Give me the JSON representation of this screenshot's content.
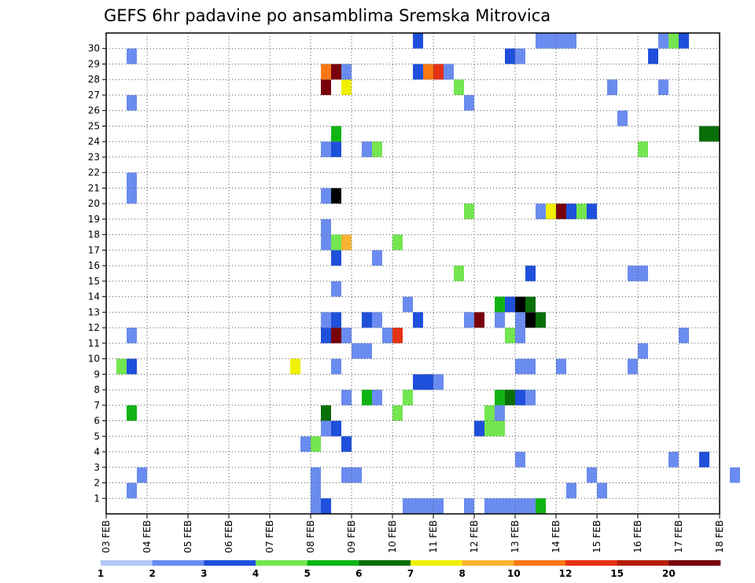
{
  "chart_data": {
    "type": "heatmap",
    "title": "GEFS 6hr padavine po ansamblima Sremska Mitrovica",
    "x_tick_labels": [
      "03 FEB",
      "04 FEB",
      "05 FEB",
      "06 FEB",
      "07 FEB",
      "08 FEB",
      "09 FEB",
      "10 FEB",
      "11 FEB",
      "12 FEB",
      "13 FEB",
      "14 FEB",
      "15 FEB",
      "16 FEB",
      "17 FEB",
      "18 FEB"
    ],
    "y_tick_labels": [
      "1",
      "2",
      "3",
      "4",
      "5",
      "6",
      "7",
      "8",
      "9",
      "10",
      "11",
      "12",
      "13",
      "14",
      "15",
      "16",
      "17",
      "18",
      "19",
      "20",
      "21",
      "22",
      "23",
      "24",
      "25",
      "26",
      "27",
      "28",
      "29",
      "30"
    ],
    "ylim": [
      0,
      30
    ],
    "grid": true,
    "colorbar": {
      "labels": [
        "1",
        "2",
        "3",
        "4",
        "5",
        "6",
        "7",
        "8",
        "10",
        "12",
        "15",
        "20"
      ],
      "colors": [
        "#b4c8f5",
        "#6a8cf0",
        "#1e50dc",
        "#73e650",
        "#0fb414",
        "#086e08",
        "#f0f000",
        "#fab432",
        "#fa7814",
        "#e63214",
        "#b41e0a",
        "#78000a"
      ]
    },
    "cells": [
      [
        0,
        20,
        1
      ],
      [
        0,
        21,
        2
      ],
      [
        0,
        29,
        1
      ],
      [
        0,
        30,
        1
      ],
      [
        0,
        31,
        1
      ],
      [
        0,
        32,
        1
      ],
      [
        0,
        35,
        1
      ],
      [
        0,
        37,
        1
      ],
      [
        0,
        38,
        1
      ],
      [
        0,
        39,
        1
      ],
      [
        0,
        40,
        1
      ],
      [
        0,
        41,
        1
      ],
      [
        0,
        42,
        4
      ],
      [
        1,
        2,
        1
      ],
      [
        1,
        20,
        1
      ],
      [
        1,
        45,
        1
      ],
      [
        1,
        48,
        1
      ],
      [
        1,
        65,
        1
      ],
      [
        2,
        3,
        1
      ],
      [
        2,
        20,
        1
      ],
      [
        2,
        23,
        1
      ],
      [
        2,
        24,
        1
      ],
      [
        2,
        47,
        1
      ],
      [
        2,
        61,
        1
      ],
      [
        3,
        40,
        1
      ],
      [
        3,
        55,
        1
      ],
      [
        3,
        58,
        2
      ],
      [
        4,
        19,
        1
      ],
      [
        4,
        20,
        3
      ],
      [
        4,
        23,
        2
      ],
      [
        5,
        21,
        1
      ],
      [
        5,
        22,
        2
      ],
      [
        5,
        36,
        2
      ],
      [
        5,
        37,
        3
      ],
      [
        5,
        38,
        3
      ],
      [
        6,
        2,
        4
      ],
      [
        6,
        21,
        5
      ],
      [
        6,
        28,
        3
      ],
      [
        6,
        37,
        3
      ],
      [
        6,
        38,
        1
      ],
      [
        7,
        23,
        1
      ],
      [
        7,
        25,
        4
      ],
      [
        7,
        26,
        1
      ],
      [
        7,
        29,
        3
      ],
      [
        7,
        38,
        4
      ],
      [
        7,
        39,
        5
      ],
      [
        7,
        40,
        2
      ],
      [
        7,
        41,
        1
      ],
      [
        8,
        30,
        2
      ],
      [
        8,
        31,
        2
      ],
      [
        8,
        32,
        1
      ],
      [
        9,
        1,
        3
      ],
      [
        9,
        2,
        2
      ],
      [
        9,
        18,
        6
      ],
      [
        9,
        22,
        1
      ],
      [
        9,
        40,
        1
      ],
      [
        9,
        41,
        1
      ],
      [
        9,
        44,
        1
      ],
      [
        9,
        51,
        1
      ],
      [
        10,
        24,
        1
      ],
      [
        10,
        25,
        1
      ],
      [
        10,
        52,
        1
      ],
      [
        11,
        2,
        1
      ],
      [
        11,
        21,
        2
      ],
      [
        11,
        22,
        11
      ],
      [
        11,
        23,
        1
      ],
      [
        11,
        27,
        1
      ],
      [
        11,
        28,
        9
      ],
      [
        11,
        39,
        3
      ],
      [
        11,
        40,
        1
      ],
      [
        11,
        56,
        1
      ],
      [
        12,
        21,
        1
      ],
      [
        12,
        22,
        2
      ],
      [
        12,
        25,
        2
      ],
      [
        12,
        26,
        1
      ],
      [
        12,
        30,
        2
      ],
      [
        12,
        35,
        1
      ],
      [
        12,
        36,
        11
      ],
      [
        12,
        38,
        1
      ],
      [
        12,
        40,
        1
      ],
      [
        12,
        41,
        12
      ],
      [
        12,
        42,
        5
      ],
      [
        13,
        29,
        1
      ],
      [
        13,
        38,
        4
      ],
      [
        13,
        39,
        2
      ],
      [
        13,
        40,
        12
      ],
      [
        13,
        41,
        5
      ],
      [
        14,
        22,
        1
      ],
      [
        15,
        34,
        3
      ],
      [
        15,
        41,
        2
      ],
      [
        15,
        51,
        1
      ],
      [
        15,
        52,
        1
      ],
      [
        16,
        22,
        2
      ],
      [
        16,
        26,
        1
      ],
      [
        17,
        21,
        1
      ],
      [
        17,
        22,
        3
      ],
      [
        17,
        23,
        7
      ],
      [
        17,
        28,
        3
      ],
      [
        18,
        21,
        1
      ],
      [
        19,
        35,
        3
      ],
      [
        19,
        42,
        1
      ],
      [
        19,
        43,
        6
      ],
      [
        19,
        44,
        11
      ],
      [
        19,
        45,
        2
      ],
      [
        19,
        46,
        3
      ],
      [
        19,
        47,
        2
      ],
      [
        20,
        2,
        1
      ],
      [
        20,
        21,
        1
      ],
      [
        20,
        22,
        12
      ],
      [
        21,
        2,
        1
      ],
      [
        23,
        21,
        1
      ],
      [
        23,
        22,
        2
      ],
      [
        23,
        25,
        1
      ],
      [
        23,
        26,
        3
      ],
      [
        23,
        52,
        3
      ],
      [
        24,
        22,
        4
      ],
      [
        24,
        58,
        5
      ],
      [
        24,
        59,
        5
      ],
      [
        25,
        50,
        1
      ],
      [
        26,
        2,
        1
      ],
      [
        26,
        35,
        1
      ],
      [
        27,
        21,
        11
      ],
      [
        27,
        23,
        6
      ],
      [
        27,
        34,
        3
      ],
      [
        27,
        49,
        1
      ],
      [
        27,
        54,
        1
      ],
      [
        28,
        21,
        8
      ],
      [
        28,
        22,
        11
      ],
      [
        28,
        23,
        1
      ],
      [
        28,
        30,
        2
      ],
      [
        28,
        31,
        8
      ],
      [
        28,
        32,
        9
      ],
      [
        28,
        33,
        1
      ],
      [
        29,
        2,
        1
      ],
      [
        29,
        39,
        2
      ],
      [
        29,
        40,
        1
      ],
      [
        29,
        53,
        2
      ],
      [
        30,
        30,
        2
      ],
      [
        30,
        42,
        1
      ],
      [
        30,
        43,
        1
      ],
      [
        30,
        44,
        1
      ],
      [
        30,
        45,
        1
      ],
      [
        30,
        54,
        1
      ],
      [
        30,
        55,
        3
      ],
      [
        30,
        56,
        2
      ]
    ]
  }
}
